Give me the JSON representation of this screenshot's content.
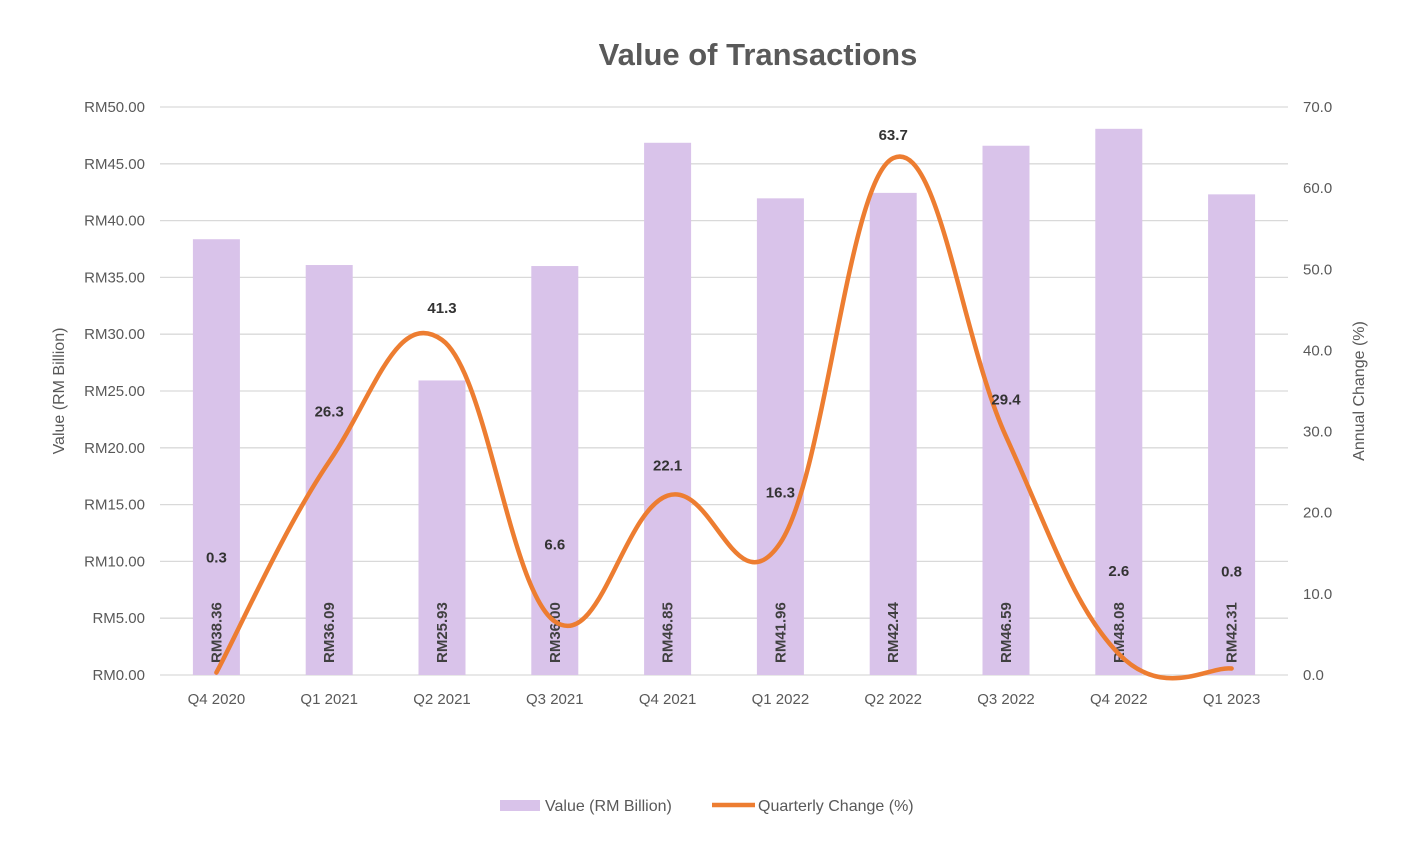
{
  "chart_data": {
    "type": "bar+line",
    "title": "Value of Transactions",
    "categories": [
      "Q4 2020",
      "Q1 2021",
      "Q2 2021",
      "Q3 2021",
      "Q4 2021",
      "Q1 2022",
      "Q2 2022",
      "Q3 2022",
      "Q4 2022",
      "Q1 2023"
    ],
    "series": [
      {
        "name": "Value (RM Billion)",
        "type": "bar",
        "axis": "left",
        "color": "#d9c3ea",
        "values": [
          38.36,
          36.09,
          25.93,
          36.0,
          46.85,
          41.96,
          42.44,
          46.59,
          48.08,
          42.31
        ],
        "labels": [
          "RM38.36",
          "RM36.09",
          "RM25.93",
          "RM36.00",
          "RM46.85",
          "RM41.96",
          "RM42.44",
          "RM46.59",
          "RM48.08",
          "RM42.31"
        ]
      },
      {
        "name": "Quarterly Change (%)",
        "type": "line",
        "smooth": true,
        "axis": "right",
        "color": "#ed7d31",
        "values": [
          0.3,
          26.3,
          41.3,
          6.6,
          22.1,
          16.3,
          63.7,
          29.4,
          2.6,
          0.8
        ],
        "labels": [
          "0.3",
          "26.3",
          "41.3",
          "6.6",
          "22.1",
          "16.3",
          "63.7",
          "29.4",
          "2.6",
          "0.8"
        ]
      }
    ],
    "ylabel": "Value (RM Billion)",
    "y2label": "Annual  Change (%)",
    "ylim": [
      0,
      50
    ],
    "y2lim": [
      0,
      70
    ],
    "yticks": [
      "RM0.00",
      "RM5.00",
      "RM10.00",
      "RM15.00",
      "RM20.00",
      "RM25.00",
      "RM30.00",
      "RM35.00",
      "RM40.00",
      "RM45.00",
      "RM50.00"
    ],
    "y2ticks": [
      "0.0",
      "10.0",
      "20.0",
      "30.0",
      "40.0",
      "50.0",
      "60.0",
      "70.0"
    ],
    "grid": true,
    "legend_position": "bottom"
  }
}
